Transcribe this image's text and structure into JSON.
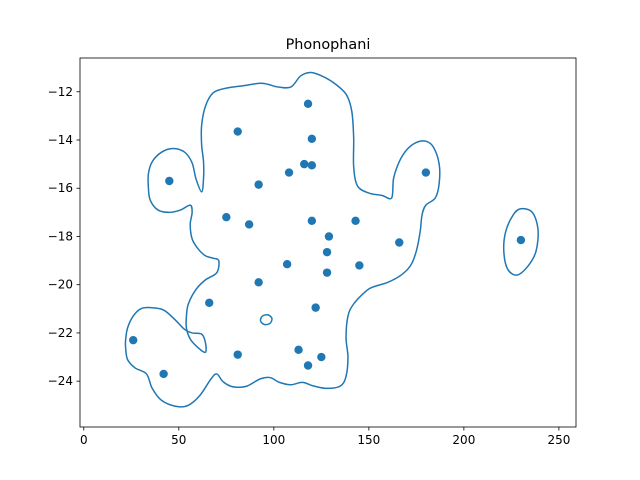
{
  "chart_data": {
    "type": "scatter",
    "title": "Phonophani",
    "xlabel": "",
    "ylabel": "",
    "xlim": [
      -2,
      259
    ],
    "ylim": [
      -25.9,
      -10.6
    ],
    "xticks": [
      0,
      50,
      100,
      150,
      200,
      250
    ],
    "yticks": [
      -12,
      -14,
      -16,
      -18,
      -20,
      -22,
      -24
    ],
    "grid": false,
    "color": "#1f77b4",
    "points": [
      {
        "x": 26,
        "y": -22.3
      },
      {
        "x": 42,
        "y": -23.7
      },
      {
        "x": 45,
        "y": -15.7
      },
      {
        "x": 66,
        "y": -20.75
      },
      {
        "x": 75,
        "y": -17.2
      },
      {
        "x": 81,
        "y": -13.65
      },
      {
        "x": 81,
        "y": -22.9
      },
      {
        "x": 87,
        "y": -17.5
      },
      {
        "x": 92,
        "y": -19.9
      },
      {
        "x": 92,
        "y": -15.85
      },
      {
        "x": 107,
        "y": -19.15
      },
      {
        "x": 108,
        "y": -15.35
      },
      {
        "x": 113,
        "y": -22.7
      },
      {
        "x": 116,
        "y": -15.0
      },
      {
        "x": 118,
        "y": -23.35
      },
      {
        "x": 118,
        "y": -12.5
      },
      {
        "x": 120,
        "y": -17.35
      },
      {
        "x": 120,
        "y": -15.05
      },
      {
        "x": 120,
        "y": -13.95
      },
      {
        "x": 122,
        "y": -20.95
      },
      {
        "x": 125,
        "y": -23.0
      },
      {
        "x": 128,
        "y": -18.65
      },
      {
        "x": 128,
        "y": -19.5
      },
      {
        "x": 129,
        "y": -18.0
      },
      {
        "x": 143,
        "y": -17.35
      },
      {
        "x": 145,
        "y": -19.2
      },
      {
        "x": 166,
        "y": -18.25
      },
      {
        "x": 180,
        "y": -15.35
      },
      {
        "x": 230,
        "y": -18.15
      }
    ],
    "contours": [
      [
        [
          124,
          -11.3
        ],
        [
          131,
          -11.6
        ],
        [
          138,
          -12.1
        ],
        [
          141,
          -12.8
        ],
        [
          142,
          -13.9
        ],
        [
          142,
          -15.1
        ],
        [
          144,
          -15.9
        ],
        [
          150,
          -16.2
        ],
        [
          157,
          -16.3
        ],
        [
          162,
          -16.4
        ],
        [
          163,
          -15.6
        ],
        [
          166,
          -14.9
        ],
        [
          170,
          -14.4
        ],
        [
          175,
          -14.1
        ],
        [
          180,
          -14.05
        ],
        [
          184,
          -14.3
        ],
        [
          187,
          -15.0
        ],
        [
          187,
          -15.8
        ],
        [
          185,
          -16.4
        ],
        [
          180,
          -16.7
        ],
        [
          178,
          -17.1
        ],
        [
          177,
          -17.8
        ],
        [
          175,
          -18.6
        ],
        [
          172,
          -19.2
        ],
        [
          167,
          -19.6
        ],
        [
          160,
          -19.9
        ],
        [
          152,
          -20.1
        ],
        [
          148,
          -20.3
        ],
        [
          142,
          -20.8
        ],
        [
          139,
          -21.3
        ],
        [
          138,
          -22.2
        ],
        [
          139,
          -23.0
        ],
        [
          138,
          -23.8
        ],
        [
          135,
          -24.2
        ],
        [
          128,
          -24.3
        ],
        [
          121,
          -24.2
        ],
        [
          115,
          -24.05
        ],
        [
          109,
          -24.15
        ],
        [
          103,
          -24.05
        ],
        [
          98,
          -23.85
        ],
        [
          93,
          -23.9
        ],
        [
          86,
          -24.2
        ],
        [
          81,
          -24.25
        ],
        [
          77,
          -24.2
        ],
        [
          73,
          -24.0
        ],
        [
          70,
          -23.7
        ],
        [
          67,
          -23.9
        ],
        [
          61,
          -24.6
        ],
        [
          55,
          -25.0
        ],
        [
          49,
          -25.05
        ],
        [
          41,
          -24.8
        ],
        [
          36,
          -24.3
        ],
        [
          33,
          -23.7
        ],
        [
          27,
          -23.45
        ],
        [
          23,
          -23.1
        ],
        [
          22,
          -22.6
        ],
        [
          22,
          -22.3
        ],
        [
          23,
          -21.8
        ],
        [
          26,
          -21.3
        ],
        [
          30,
          -21.0
        ],
        [
          35,
          -20.95
        ],
        [
          42,
          -21.05
        ],
        [
          48,
          -21.45
        ],
        [
          53,
          -21.85
        ],
        [
          57,
          -22.0
        ],
        [
          62,
          -22.05
        ],
        [
          64,
          -22.4
        ],
        [
          64,
          -22.8
        ],
        [
          60,
          -22.6
        ],
        [
          56,
          -22.25
        ],
        [
          54,
          -21.8
        ],
        [
          54,
          -21.3
        ],
        [
          55,
          -20.8
        ],
        [
          59,
          -20.2
        ],
        [
          64,
          -19.8
        ],
        [
          70,
          -19.5
        ],
        [
          71,
          -19.0
        ],
        [
          68,
          -18.9
        ],
        [
          64,
          -18.8
        ],
        [
          60,
          -18.5
        ],
        [
          57,
          -18.1
        ],
        [
          56,
          -17.5
        ],
        [
          57,
          -17.0
        ],
        [
          56,
          -16.7
        ],
        [
          51,
          -16.9
        ],
        [
          45,
          -17.0
        ],
        [
          39,
          -16.9
        ],
        [
          35,
          -16.5
        ],
        [
          34,
          -16.0
        ],
        [
          34,
          -15.4
        ],
        [
          36,
          -14.9
        ],
        [
          41,
          -14.5
        ],
        [
          47,
          -14.35
        ],
        [
          53,
          -14.5
        ],
        [
          57,
          -14.95
        ],
        [
          59,
          -15.6
        ],
        [
          62,
          -16.15
        ],
        [
          63,
          -15.6
        ],
        [
          63,
          -14.9
        ],
        [
          62,
          -14.2
        ],
        [
          62,
          -13.4
        ],
        [
          64,
          -12.6
        ],
        [
          68,
          -12.05
        ],
        [
          75,
          -11.85
        ],
        [
          84,
          -11.75
        ],
        [
          94,
          -11.65
        ],
        [
          102,
          -11.8
        ],
        [
          109,
          -11.8
        ],
        [
          114,
          -11.35
        ],
        [
          119,
          -11.2
        ],
        [
          124,
          -11.3
        ]
      ],
      [
        [
          230,
          -16.85
        ],
        [
          236,
          -17.0
        ],
        [
          239,
          -17.7
        ],
        [
          238,
          -18.6
        ],
        [
          234,
          -19.2
        ],
        [
          228,
          -19.6
        ],
        [
          223,
          -19.35
        ],
        [
          221,
          -18.6
        ],
        [
          222,
          -17.8
        ],
        [
          226,
          -17.1
        ],
        [
          230,
          -16.85
        ]
      ],
      [
        [
          97,
          -21.25
        ],
        [
          99,
          -21.4
        ],
        [
          98,
          -21.6
        ],
        [
          95,
          -21.65
        ],
        [
          93,
          -21.5
        ],
        [
          94,
          -21.3
        ],
        [
          97,
          -21.25
        ]
      ]
    ]
  }
}
